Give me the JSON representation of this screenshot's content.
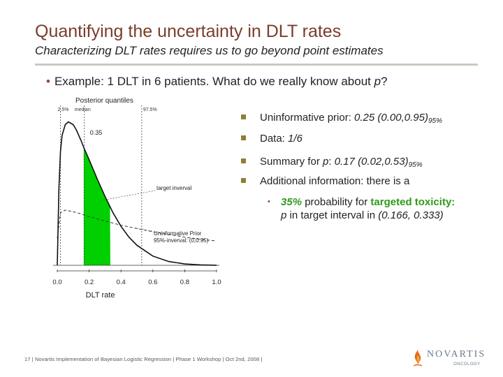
{
  "header": {
    "title": "Quantifying the uncertainty in DLT rates",
    "subtitle": "Characterizing DLT rates requires us to go beyond point estimates"
  },
  "example": {
    "text": "Example: 1 DLT in 6 patients. What do we really know about ",
    "var": "p",
    "end": "?"
  },
  "bullets": [
    {
      "label": "Uninformative prior: ",
      "value": "0.25 (0.00,0.95)",
      "sub": "95%"
    },
    {
      "label": "Data: ",
      "value": "1/6"
    },
    {
      "label": "Summary for ",
      "var": "p",
      "label2": ": ",
      "value": "0.17 (0.02,0.53)",
      "sub": "95%"
    },
    {
      "label": "Additional information: there is a"
    }
  ],
  "sub_bullet": {
    "pct": "35%",
    "text1": " probability for ",
    "targeted": "targeted toxicity:",
    "var": "p",
    "text2": " in target interval in ",
    "interval": "(0.166, 0.333)"
  },
  "chart_data": {
    "type": "area",
    "title": "Posterior quantiles",
    "quantile_labels": [
      "2.5%",
      "median",
      "97.5%"
    ],
    "quantiles": [
      0.02,
      0.17,
      0.53
    ],
    "median_label": "0.35",
    "xlabel": "DLT rate",
    "ylabel": "",
    "xlim": [
      0,
      1.0
    ],
    "xticks": [
      "0.0",
      "0.2",
      "0.4",
      "0.6",
      "0.8",
      "1.0"
    ],
    "series": [
      {
        "name": "posterior",
        "x": [
          0,
          0.01,
          0.02,
          0.03,
          0.05,
          0.07,
          0.1,
          0.12,
          0.15,
          0.17,
          0.2,
          0.25,
          0.3,
          0.35,
          0.4,
          0.45,
          0.5,
          0.6,
          0.7,
          0.8,
          0.9,
          1.0
        ],
        "y": [
          0,
          1.4,
          2.1,
          2.4,
          2.6,
          2.65,
          2.6,
          2.5,
          2.3,
          2.15,
          1.95,
          1.6,
          1.27,
          0.97,
          0.72,
          0.52,
          0.37,
          0.17,
          0.07,
          0.025,
          0.007,
          0.001
        ]
      },
      {
        "name": "prior",
        "x": [
          0,
          0.02,
          0.05,
          0.1,
          0.15,
          0.2,
          0.25,
          0.3,
          0.4,
          0.5,
          0.6,
          0.7,
          0.8,
          0.9,
          1.0
        ],
        "y": [
          0.5,
          0.97,
          1.02,
          0.99,
          0.95,
          0.9,
          0.86,
          0.82,
          0.74,
          0.68,
          0.62,
          0.57,
          0.52,
          0.48,
          0.45
        ]
      }
    ],
    "shaded_interval": [
      0.166,
      0.333
    ],
    "annotations": [
      "target inverval",
      "Uninformative Prior",
      "95%-inverval: (0,0.95)"
    ],
    "colors": {
      "shade": "#00d000",
      "curve": "#111111",
      "prior": "#333333"
    }
  },
  "footer": "17 | Novartis Implementation of Bayesian Logistic Regression | Phase 1 Workshop | Oct 2nd, 2008 |",
  "logo": {
    "name": "NOVARTIS",
    "division": "ONCOLOGY"
  }
}
